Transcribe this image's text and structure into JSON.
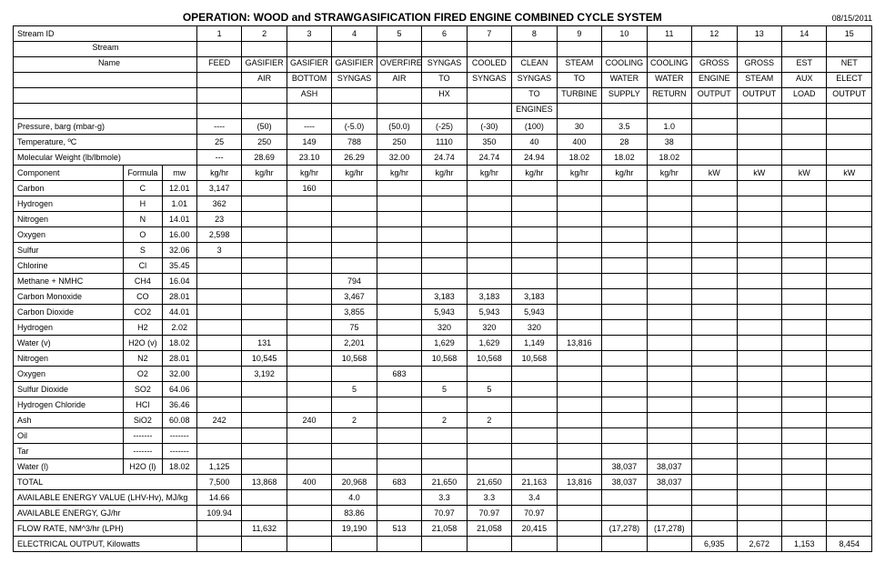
{
  "title": "OPERATION:  WOOD and STRAWGASIFICATION FIRED ENGINE COMBINED CYCLE SYSTEM",
  "date": "08/15/2011",
  "stream_ids": [
    "1",
    "2",
    "3",
    "4",
    "5",
    "6",
    "7",
    "8",
    "9",
    "10",
    "11",
    "12",
    "13",
    "14",
    "15"
  ],
  "stream_names": [
    [
      "",
      "",
      "",
      "",
      "",
      "",
      "",
      "",
      "",
      "",
      "",
      "",
      "",
      "",
      ""
    ],
    [
      "FEED",
      "GASIFIER",
      "GASIFIER",
      "GASIFIER",
      "OVERFIRE",
      "SYNGAS",
      "COOLED",
      "CLEAN",
      "STEAM",
      "COOLING",
      "COOLING",
      "GROSS",
      "GROSS",
      "EST",
      "NET"
    ],
    [
      "",
      "AIR",
      "BOTTOM",
      "SYNGAS",
      "AIR",
      "TO",
      "SYNGAS",
      "SYNGAS",
      "TO",
      "WATER",
      "WATER",
      "ENGINE",
      "STEAM",
      "AUX",
      "ELECT"
    ],
    [
      "",
      "",
      "ASH",
      "",
      "",
      "HX",
      "",
      "TO",
      "TURBINE",
      "SUPPLY",
      "RETURN",
      "OUTPUT",
      "OUTPUT",
      "LOAD",
      "OUTPUT"
    ],
    [
      "",
      "",
      "",
      "",
      "",
      "",
      "",
      "ENGINES",
      "",
      "",
      "",
      "",
      "",
      "",
      ""
    ]
  ],
  "pre_rows": [
    {
      "label": "Pressure, barg (mbar-g)",
      "vals": [
        "----",
        "(50)",
        "----",
        "(-5.0)",
        "(50.0)",
        "(-25)",
        "(-30)",
        "(100)",
        "30",
        "3.5",
        "1.0",
        "",
        "",
        "",
        ""
      ]
    },
    {
      "label": "Temperature, ºC",
      "vals": [
        "25",
        "250",
        "149",
        "788",
        "250",
        "1110",
        "350",
        "40",
        "400",
        "28",
        "38",
        "",
        "",
        "",
        ""
      ]
    },
    {
      "label": "Molecular Weight (lb/lbmole)",
      "vals": [
        "---",
        "28.69",
        "23.10",
        "26.29",
        "32.00",
        "24.74",
        "24.74",
        "24.94",
        "18.02",
        "18.02",
        "18.02",
        "",
        "",
        "",
        ""
      ]
    }
  ],
  "comp_header": {
    "label": "Component",
    "formula": "Formula",
    "mw": "mw",
    "vals": [
      "kg/hr",
      "kg/hr",
      "kg/hr",
      "kg/hr",
      "kg/hr",
      "kg/hr",
      "kg/hr",
      "kg/hr",
      "kg/hr",
      "kg/hr",
      "kg/hr",
      "kW",
      "kW",
      "kW",
      "kW"
    ]
  },
  "components": [
    {
      "label": "Carbon",
      "formula": "C",
      "mw": "12.01",
      "vals": [
        "3,147",
        "",
        "160",
        "",
        "",
        "",
        "",
        "",
        "",
        "",
        "",
        "",
        "",
        "",
        ""
      ]
    },
    {
      "label": "Hydrogen",
      "formula": "H",
      "mw": "1.01",
      "vals": [
        "362",
        "",
        "",
        "",
        "",
        "",
        "",
        "",
        "",
        "",
        "",
        "",
        "",
        "",
        ""
      ]
    },
    {
      "label": "Nitrogen",
      "formula": "N",
      "mw": "14.01",
      "vals": [
        "23",
        "",
        "",
        "",
        "",
        "",
        "",
        "",
        "",
        "",
        "",
        "",
        "",
        "",
        ""
      ]
    },
    {
      "label": "Oxygen",
      "formula": "O",
      "mw": "16.00",
      "vals": [
        "2,598",
        "",
        "",
        "",
        "",
        "",
        "",
        "",
        "",
        "",
        "",
        "",
        "",
        "",
        ""
      ]
    },
    {
      "label": "Sulfur",
      "formula": "S",
      "mw": "32.06",
      "vals": [
        "3",
        "",
        "",
        "",
        "",
        "",
        "",
        "",
        "",
        "",
        "",
        "",
        "",
        "",
        ""
      ]
    },
    {
      "label": "Chlorine",
      "formula": "Cl",
      "mw": "35.45",
      "vals": [
        "",
        "",
        "",
        "",
        "",
        "",
        "",
        "",
        "",
        "",
        "",
        "",
        "",
        "",
        ""
      ]
    },
    {
      "label": "Methane + NMHC",
      "formula": "CH4",
      "mw": "16.04",
      "vals": [
        "",
        "",
        "",
        "794",
        "",
        "",
        "",
        "",
        "",
        "",
        "",
        "",
        "",
        "",
        ""
      ]
    },
    {
      "label": "Carbon Monoxide",
      "formula": "CO",
      "mw": "28.01",
      "vals": [
        "",
        "",
        "",
        "3,467",
        "",
        "3,183",
        "3,183",
        "3,183",
        "",
        "",
        "",
        "",
        "",
        "",
        ""
      ]
    },
    {
      "label": "Carbon Dioxide",
      "formula": "CO2",
      "mw": "44.01",
      "vals": [
        "",
        "",
        "",
        "3,855",
        "",
        "5,943",
        "5,943",
        "5,943",
        "",
        "",
        "",
        "",
        "",
        "",
        ""
      ]
    },
    {
      "label": "Hydrogen",
      "formula": "H2",
      "mw": "2.02",
      "vals": [
        "",
        "",
        "",
        "75",
        "",
        "320",
        "320",
        "320",
        "",
        "",
        "",
        "",
        "",
        "",
        ""
      ]
    },
    {
      "label": "Water (v)",
      "formula": "H2O (v)",
      "mw": "18.02",
      "vals": [
        "",
        "131",
        "",
        "2,201",
        "",
        "1,629",
        "1,629",
        "1,149",
        "13,816",
        "",
        "",
        "",
        "",
        "",
        ""
      ]
    },
    {
      "label": "Nitrogen",
      "formula": "N2",
      "mw": "28.01",
      "vals": [
        "",
        "10,545",
        "",
        "10,568",
        "",
        "10,568",
        "10,568",
        "10,568",
        "",
        "",
        "",
        "",
        "",
        "",
        ""
      ]
    },
    {
      "label": "Oxygen",
      "formula": "O2",
      "mw": "32.00",
      "vals": [
        "",
        "3,192",
        "",
        "",
        "683",
        "",
        "",
        "",
        "",
        "",
        "",
        "",
        "",
        "",
        ""
      ]
    },
    {
      "label": "Sulfur Dioxide",
      "formula": "SO2",
      "mw": "64.06",
      "vals": [
        "",
        "",
        "",
        "5",
        "",
        "5",
        "5",
        "",
        "",
        "",
        "",
        "",
        "",
        "",
        ""
      ]
    },
    {
      "label": "Hydrogen Chloride",
      "formula": "HCl",
      "mw": "36.46",
      "vals": [
        "",
        "",
        "",
        "",
        "",
        "",
        "",
        "",
        "",
        "",
        "",
        "",
        "",
        "",
        ""
      ]
    },
    {
      "label": "Ash",
      "formula": "SiO2",
      "mw": "60.08",
      "vals": [
        "242",
        "",
        "240",
        "2",
        "",
        "2",
        "2",
        "",
        "",
        "",
        "",
        "",
        "",
        "",
        ""
      ]
    },
    {
      "label": "Oil",
      "formula": "-------",
      "mw": "-------",
      "vals": [
        "",
        "",
        "",
        "",
        "",
        "",
        "",
        "",
        "",
        "",
        "",
        "",
        "",
        "",
        ""
      ]
    },
    {
      "label": "Tar",
      "formula": "-------",
      "mw": "-------",
      "vals": [
        "",
        "",
        "",
        "",
        "",
        "",
        "",
        "",
        "",
        "",
        "",
        "",
        "",
        "",
        ""
      ]
    },
    {
      "label": "Water (l)",
      "formula": "H2O (l)",
      "mw": "18.02",
      "vals": [
        "1,125",
        "",
        "",
        "",
        "",
        "",
        "",
        "",
        "",
        "38,037",
        "38,037",
        "",
        "",
        "",
        ""
      ]
    }
  ],
  "post_rows": [
    {
      "label": "TOTAL",
      "vals": [
        "7,500",
        "13,868",
        "400",
        "20,968",
        "683",
        "21,650",
        "21,650",
        "21,163",
        "13,816",
        "38,037",
        "38,037",
        "",
        "",
        "",
        ""
      ]
    },
    {
      "label": "AVAILABLE ENERGY VALUE (LHV-Hv), MJ/kg",
      "vals": [
        "14.66",
        "",
        "",
        "4.0",
        "",
        "3.3",
        "3.3",
        "3.4",
        "",
        "",
        "",
        "",
        "",
        "",
        ""
      ]
    },
    {
      "label": "AVAILABLE ENERGY, GJ/hr",
      "vals": [
        "109.94",
        "",
        "",
        "83.86",
        "",
        "70.97",
        "70.97",
        "70.97",
        "",
        "",
        "",
        "",
        "",
        "",
        ""
      ]
    },
    {
      "label": "FLOW RATE, NM^3/hr (LPH)",
      "vals": [
        "",
        "11,632",
        "",
        "19,190",
        "513",
        "21,058",
        "21,058",
        "20,415",
        "",
        "(17,278)",
        "(17,278)",
        "",
        "",
        "",
        ""
      ]
    },
    {
      "label": "ELECTRICAL OUTPUT, Kilowatts",
      "vals": [
        "",
        "",
        "",
        "",
        "",
        "",
        "",
        "",
        "",
        "",
        "",
        "6,935",
        "2,672",
        "1,153",
        "8,454"
      ]
    }
  ]
}
